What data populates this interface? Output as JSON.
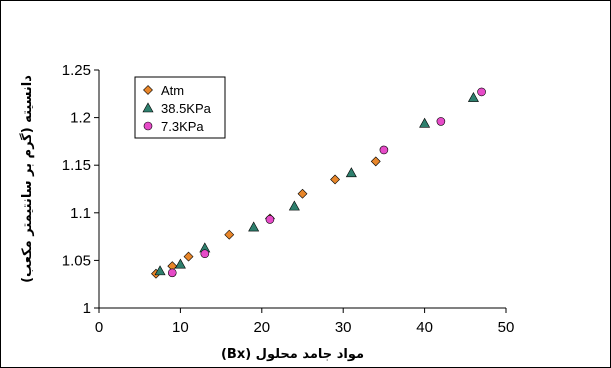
{
  "chart_data": {
    "type": "scatter",
    "xlabel": "مواد جامد محلول (Bx)",
    "ylabel": "دانسیته (گرم بر سانتیمتر مکعب)",
    "xlim": [
      0,
      50
    ],
    "ylim": [
      1,
      1.25
    ],
    "x_ticks": [
      "0",
      "10",
      "20",
      "30",
      "40",
      "50"
    ],
    "y_ticks": [
      "1",
      "1.05",
      "1.1",
      "1.15",
      "1.2",
      "1.25"
    ],
    "grid": false,
    "legend_position": "top-left",
    "series": [
      {
        "name": "Atm",
        "marker": "diamond",
        "color": "#E8862A",
        "points": [
          [
            7,
            1.036
          ],
          [
            9,
            1.044
          ],
          [
            11,
            1.054
          ],
          [
            16,
            1.077
          ],
          [
            21,
            1.094
          ],
          [
            25,
            1.12
          ],
          [
            29,
            1.135
          ],
          [
            34,
            1.154
          ]
        ]
      },
      {
        "name": "38.5KPa",
        "marker": "triangle",
        "color": "#2E7F6D",
        "points": [
          [
            7.5,
            1.039
          ],
          [
            10,
            1.046
          ],
          [
            13,
            1.063
          ],
          [
            19,
            1.085
          ],
          [
            24,
            1.107
          ],
          [
            31,
            1.142
          ],
          [
            40,
            1.194
          ],
          [
            46,
            1.221
          ]
        ]
      },
      {
        "name": "7.3KPa",
        "marker": "circle",
        "color": "#E64BC8",
        "points": [
          [
            9,
            1.037
          ],
          [
            13,
            1.057
          ],
          [
            21,
            1.093
          ],
          [
            35,
            1.166
          ],
          [
            42,
            1.196
          ],
          [
            47,
            1.227
          ]
        ]
      }
    ]
  }
}
